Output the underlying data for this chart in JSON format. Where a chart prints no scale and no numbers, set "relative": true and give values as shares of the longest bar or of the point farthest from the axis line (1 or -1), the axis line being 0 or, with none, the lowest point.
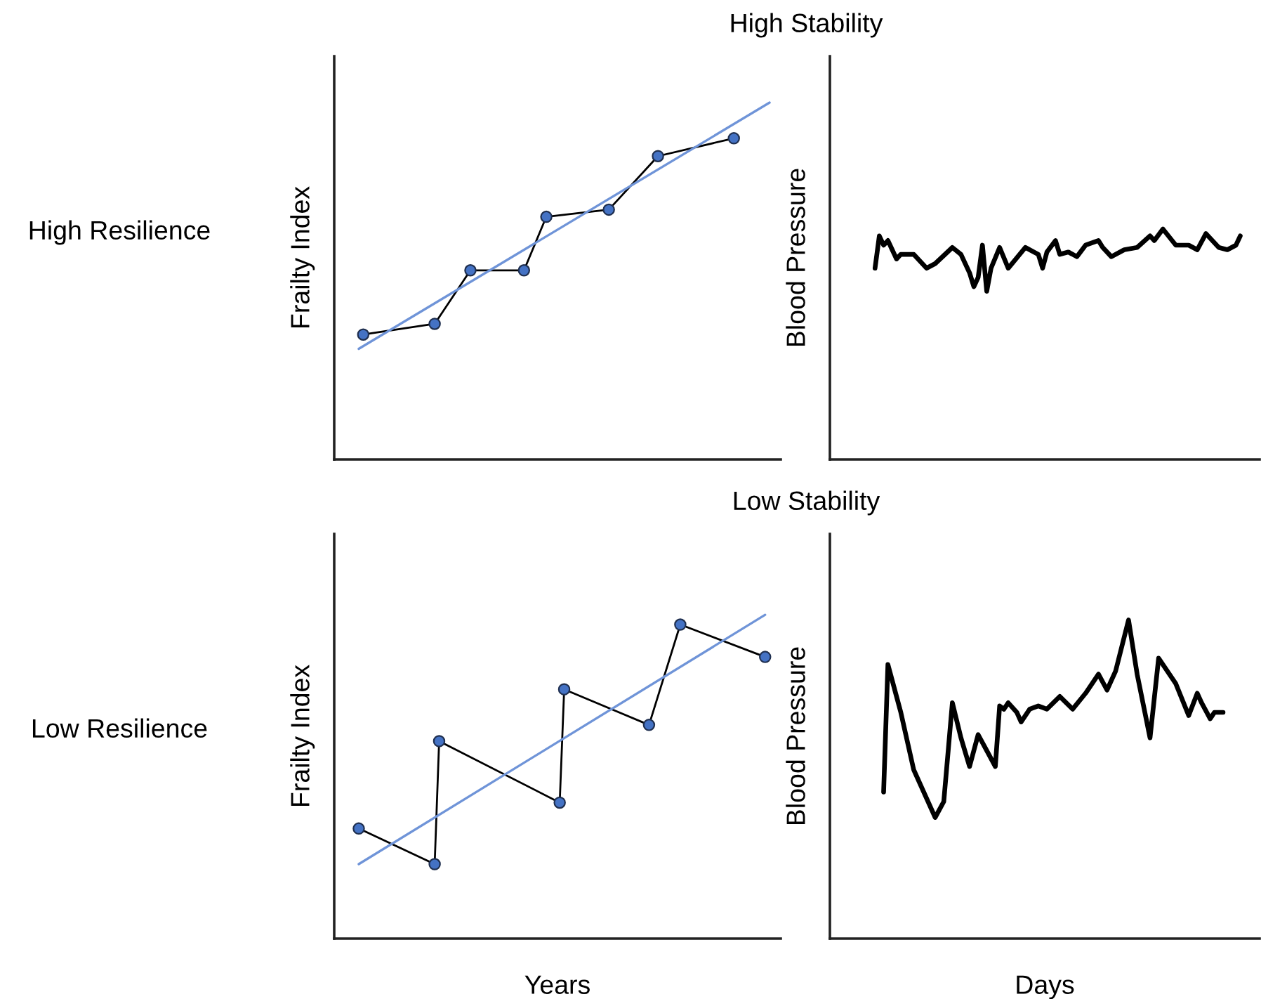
{
  "chart_data": [
    {
      "type": "line",
      "relative": true,
      "ylabel": "Frailty Index",
      "annotations": [
        "High Resilience",
        "High Stability"
      ],
      "categories": [
        null,
        null,
        null,
        null,
        null,
        null,
        null,
        null,
        null,
        null,
        null,
        null,
        null,
        null,
        null,
        null,
        null,
        null,
        null,
        null,
        null,
        null,
        null,
        null,
        null,
        null,
        null,
        null,
        null,
        null,
        null,
        null,
        null,
        null,
        null,
        null,
        null,
        null,
        null,
        null,
        null,
        null,
        null,
        null,
        null,
        null,
        null,
        null,
        null,
        null,
        null,
        null,
        null,
        null,
        null,
        null,
        null,
        null,
        null,
        null,
        null,
        null,
        null,
        null,
        null,
        null,
        null,
        null,
        null,
        null,
        null,
        null,
        null,
        null,
        null,
        null,
        null,
        null,
        null,
        null,
        null,
        null,
        null,
        null,
        null,
        null,
        null,
        null,
        null,
        null,
        null,
        null,
        null,
        null,
        null,
        null,
        null,
        null,
        null,
        null
      ],
      "series": [
        {
          "color": "#000000",
          "marker": "circle",
          "colors": [
            null,
            null,
            null,
            null,
            null,
            null,
            "#4472c4",
            null,
            null,
            null,
            null,
            null,
            null,
            null,
            null,
            null,
            null,
            null,
            null,
            null,
            null,
            null,
            "#4472c4",
            null,
            null,
            null,
            null,
            null,
            null,
            null,
            "#4472c4",
            null,
            null,
            null,
            null,
            null,
            null,
            null,
            null,
            null,
            null,
            null,
            "#4472c4",
            null,
            null,
            null,
            null,
            "#4472c4",
            null,
            null,
            null,
            null,
            null,
            null,
            null,
            null,
            null,
            null,
            null,
            null,
            null,
            "#4472c4",
            null,
            null,
            null,
            null,
            null,
            null,
            null,
            null,
            null,
            null,
            "#4472c4",
            null,
            null,
            null,
            null,
            null,
            null,
            null,
            null,
            null,
            null,
            null,
            null,
            null,
            null,
            null,
            null,
            "#4472c4",
            null,
            null,
            null,
            null,
            null,
            null,
            null,
            null,
            null,
            null
          ],
          "values": [
            null,
            null,
            null,
            null,
            null,
            null,
            0.35,
            null,
            null,
            null,
            null,
            null,
            null,
            null,
            null,
            null,
            null,
            null,
            null,
            null,
            null,
            null,
            0.38,
            null,
            null,
            null,
            null,
            null,
            null,
            null,
            0.53,
            null,
            null,
            null,
            null,
            null,
            null,
            null,
            null,
            null,
            null,
            null,
            0.53,
            null,
            null,
            null,
            null,
            0.68,
            null,
            null,
            null,
            null,
            null,
            null,
            null,
            null,
            null,
            null,
            null,
            null,
            null,
            0.7,
            null,
            null,
            null,
            null,
            null,
            null,
            null,
            null,
            null,
            null,
            0.85,
            null,
            null,
            null,
            null,
            null,
            null,
            null,
            null,
            null,
            null,
            null,
            null,
            null,
            null,
            null,
            null,
            0.9,
            null,
            null,
            null,
            null,
            null,
            null,
            null,
            null,
            null,
            null
          ]
        },
        {
          "color": "#6f94d8",
          "values": [
            null,
            null,
            null,
            null,
            null,
            0.31,
            null,
            null,
            null,
            null,
            null,
            null,
            null,
            null,
            null,
            null,
            null,
            null,
            null,
            null,
            null,
            null,
            null,
            null,
            null,
            null,
            null,
            null,
            null,
            null,
            null,
            null,
            null,
            null,
            null,
            null,
            null,
            null,
            null,
            null,
            null,
            null,
            null,
            null,
            null,
            null,
            null,
            null,
            null,
            null,
            null,
            null,
            null,
            null,
            null,
            null,
            null,
            null,
            null,
            null,
            null,
            null,
            null,
            null,
            null,
            null,
            null,
            null,
            null,
            null,
            null,
            null,
            null,
            null,
            null,
            null,
            null,
            null,
            null,
            null,
            null,
            null,
            null,
            null,
            null,
            null,
            null,
            null,
            null,
            null,
            null,
            null,
            null,
            null,
            null,
            null,
            null,
            1.0,
            null,
            null
          ]
        }
      ]
    },
    {
      "type": "line",
      "relative": true,
      "ylabel": "Blood Pressure",
      "categories": [
        null,
        null,
        null,
        null,
        null,
        null,
        null,
        null,
        null,
        null,
        null,
        null,
        null,
        null,
        null,
        null,
        null,
        null,
        null,
        null,
        null,
        null,
        null,
        null,
        null,
        null,
        null,
        null,
        null,
        null,
        null,
        null,
        null,
        null,
        null,
        null,
        null,
        null,
        null,
        null,
        null,
        null,
        null,
        null,
        null,
        null,
        null,
        null,
        null,
        null,
        null,
        null,
        null,
        null,
        null,
        null,
        null,
        null,
        null,
        null,
        null,
        null,
        null,
        null,
        null,
        null,
        null,
        null,
        null,
        null,
        null,
        null,
        null,
        null,
        null,
        null,
        null,
        null,
        null,
        null,
        null,
        null,
        null,
        null,
        null,
        null,
        null,
        null,
        null,
        null,
        null,
        null,
        null,
        null,
        null,
        null,
        null,
        null,
        null,
        null
      ],
      "series": [
        {
          "color": "#000000",
          "values": [
            null,
            null,
            null,
            null,
            null,
            null,
            null,
            null,
            null,
            null,
            0.83,
            0.97,
            0.93,
            0.95,
            0.91,
            0.87,
            0.89,
            null,
            null,
            0.89,
            null,
            null,
            0.83,
            null,
            0.85,
            null,
            null,
            null,
            0.92,
            null,
            0.89,
            null,
            0.81,
            0.75,
            0.79,
            0.93,
            0.73,
            0.83,
            null,
            0.92,
            null,
            0.83,
            null,
            null,
            null,
            0.92,
            null,
            null,
            0.89,
            0.83,
            0.9,
            null,
            0.95,
            0.89,
            null,
            0.9,
            null,
            0.88,
            null,
            0.93,
            null,
            null,
            0.95,
            0.92,
            null,
            0.88,
            null,
            null,
            0.91,
            null,
            null,
            0.92,
            null,
            null,
            0.97,
            0.95,
            null,
            1.0,
            null,
            null,
            0.93,
            null,
            null,
            0.93,
            null,
            0.91,
            null,
            0.98,
            null,
            null,
            0.92,
            null,
            0.91,
            null,
            0.93,
            0.97,
            null,
            null,
            null,
            null
          ]
        }
      ]
    },
    {
      "type": "line",
      "relative": true,
      "ylabel": "Frailty Index",
      "xlabel": "Years",
      "annotations": [
        "Low Resilience",
        "Low Stability"
      ],
      "categories": [
        null,
        null,
        null,
        null,
        null,
        null,
        null,
        null,
        null,
        null,
        null,
        null,
        null,
        null,
        null,
        null,
        null,
        null,
        null,
        null,
        null,
        null,
        null,
        null,
        null,
        null,
        null,
        null,
        null,
        null,
        null,
        null,
        null,
        null,
        null,
        null,
        null,
        null,
        null,
        null,
        null,
        null,
        null,
        null,
        null,
        null,
        null,
        null,
        null,
        null,
        null,
        null,
        null,
        null,
        null,
        null,
        null,
        null,
        null,
        null,
        null,
        null,
        null,
        null,
        null,
        null,
        null,
        null,
        null,
        null,
        null,
        null,
        null,
        null,
        null,
        null,
        null,
        null,
        null,
        null,
        null,
        null,
        null,
        null,
        null,
        null,
        null,
        null,
        null,
        null,
        null,
        null,
        null,
        null,
        null,
        null,
        null,
        null,
        null,
        null
      ],
      "series": [
        {
          "color": "#000000",
          "marker": "circle",
          "colors": [
            null,
            null,
            null,
            null,
            null,
            "#4472c4",
            null,
            null,
            null,
            null,
            null,
            null,
            null,
            null,
            null,
            null,
            null,
            null,
            null,
            null,
            null,
            null,
            "#4472c4",
            "#4472c4",
            null,
            null,
            null,
            null,
            null,
            null,
            null,
            null,
            null,
            null,
            null,
            null,
            null,
            null,
            null,
            null,
            null,
            null,
            null,
            null,
            null,
            null,
            null,
            null,
            null,
            null,
            "#4472c4",
            "#4472c4",
            null,
            null,
            null,
            null,
            null,
            null,
            null,
            null,
            null,
            null,
            null,
            null,
            null,
            null,
            null,
            null,
            null,
            null,
            "#4472c4",
            null,
            null,
            null,
            null,
            null,
            null,
            "#4472c4",
            null,
            null,
            null,
            null,
            null,
            null,
            null,
            null,
            null,
            null,
            null,
            null,
            null,
            null,
            null,
            null,
            null,
            null,
            "#4472c4",
            null,
            null,
            null
          ],
          "values": [
            null,
            null,
            null,
            null,
            null,
            0.34,
            null,
            null,
            null,
            null,
            null,
            null,
            null,
            null,
            null,
            null,
            null,
            null,
            null,
            null,
            null,
            null,
            0.23,
            0.61,
            null,
            null,
            null,
            null,
            null,
            null,
            null,
            null,
            null,
            null,
            null,
            null,
            null,
            null,
            null,
            null,
            null,
            null,
            null,
            null,
            null,
            null,
            null,
            null,
            null,
            null,
            0.42,
            0.77,
            null,
            null,
            null,
            null,
            null,
            null,
            null,
            null,
            null,
            null,
            null,
            null,
            null,
            null,
            null,
            null,
            null,
            null,
            0.66,
            null,
            null,
            null,
            null,
            null,
            null,
            0.97,
            null,
            null,
            null,
            null,
            null,
            null,
            null,
            null,
            null,
            null,
            null,
            null,
            null,
            null,
            null,
            null,
            null,
            null,
            0.87,
            null,
            null,
            null
          ]
        },
        {
          "color": "#6f94d8",
          "values": [
            null,
            null,
            null,
            null,
            null,
            0.23,
            null,
            null,
            null,
            null,
            null,
            null,
            null,
            null,
            null,
            null,
            null,
            null,
            null,
            null,
            null,
            null,
            null,
            null,
            null,
            null,
            null,
            null,
            null,
            null,
            null,
            null,
            null,
            null,
            null,
            null,
            null,
            null,
            null,
            null,
            null,
            null,
            null,
            null,
            null,
            null,
            null,
            null,
            null,
            null,
            null,
            null,
            null,
            null,
            null,
            null,
            null,
            null,
            null,
            null,
            null,
            null,
            null,
            null,
            null,
            null,
            null,
            null,
            null,
            null,
            null,
            null,
            null,
            null,
            null,
            null,
            null,
            null,
            null,
            null,
            null,
            null,
            null,
            null,
            null,
            null,
            null,
            null,
            null,
            null,
            null,
            null,
            null,
            null,
            null,
            null,
            1.0,
            null,
            null,
            null
          ]
        }
      ]
    },
    {
      "type": "line",
      "relative": true,
      "ylabel": "Blood Pressure",
      "xlabel": "Days",
      "categories": [
        null,
        null,
        null,
        null,
        null,
        null,
        null,
        null,
        null,
        null,
        null,
        null,
        null,
        null,
        null,
        null,
        null,
        null,
        null,
        null,
        null,
        null,
        null,
        null,
        null,
        null,
        null,
        null,
        null,
        null,
        null,
        null,
        null,
        null,
        null,
        null,
        null,
        null,
        null,
        null,
        null,
        null,
        null,
        null,
        null,
        null,
        null,
        null,
        null,
        null,
        null,
        null,
        null,
        null,
        null,
        null,
        null,
        null,
        null,
        null,
        null,
        null,
        null,
        null,
        null,
        null,
        null,
        null,
        null,
        null,
        null,
        null,
        null,
        null,
        null,
        null,
        null,
        null,
        null,
        null,
        null,
        null,
        null,
        null,
        null,
        null,
        null,
        null,
        null,
        null,
        null,
        null,
        null,
        null,
        null,
        null,
        null,
        null,
        null,
        null
      ],
      "series": [
        {
          "color": "#000000",
          "values": [
            null,
            null,
            null,
            null,
            null,
            null,
            null,
            null,
            null,
            null,
            null,
            null,
            0.46,
            0.86,
            null,
            null,
            0.71,
            null,
            null,
            0.53,
            null,
            null,
            null,
            null,
            0.38,
            null,
            0.43,
            null,
            0.74,
            null,
            0.63,
            null,
            0.54,
            null,
            0.64,
            null,
            0.59,
            null,
            0.54,
            0.73,
            0.72,
            0.74,
            null,
            0.71,
            0.68,
            null,
            0.72,
            null,
            0.73,
            null,
            0.72,
            null,
            null,
            0.76,
            null,
            null,
            0.72,
            null,
            null,
            0.77,
            null,
            null,
            0.83,
            null,
            0.78,
            null,
            0.84,
            null,
            null,
            1.0,
            null,
            0.83,
            null,
            null,
            0.63,
            null,
            0.88,
            null,
            null,
            null,
            0.8,
            null,
            null,
            0.7,
            null,
            0.77,
            0.74,
            null,
            0.69,
            0.71,
            null,
            0.71,
            null,
            null,
            null,
            null,
            null,
            null,
            null,
            null
          ]
        }
      ]
    }
  ]
}
